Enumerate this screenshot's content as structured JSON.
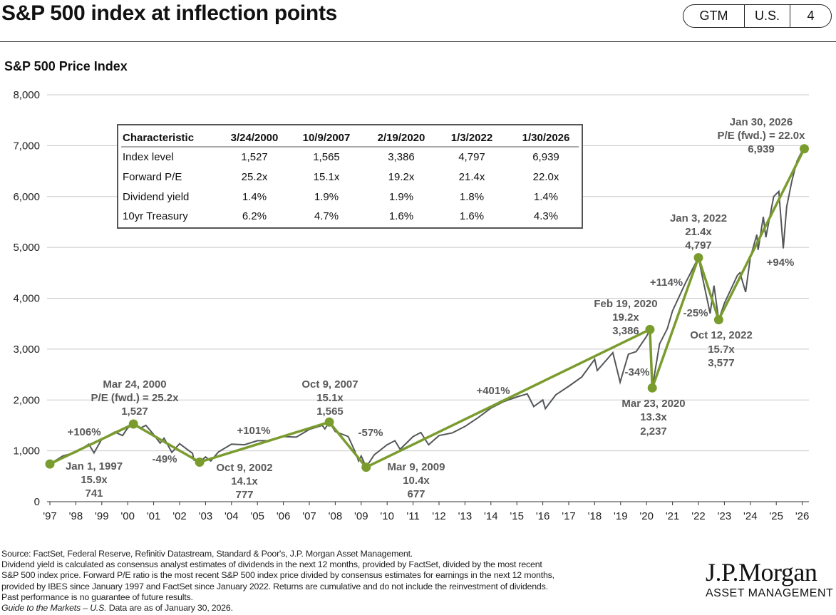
{
  "header": {
    "title": "S&P 500 index at inflection points",
    "badge": [
      "GTM",
      "U.S.",
      "4"
    ]
  },
  "subtitle": "S&P 500 Price Index",
  "table": {
    "headers": [
      "Characteristic",
      "3/24/2000",
      "10/9/2007",
      "2/19/2020",
      "1/3/2022",
      "1/30/2026"
    ],
    "rows": [
      [
        "Index level",
        "1,527",
        "1,565",
        "3,386",
        "4,797",
        "6,939"
      ],
      [
        "Forward P/E",
        "25.2x",
        "15.1x",
        "19.2x",
        "21.4x",
        "22.0x"
      ],
      [
        "Dividend yield",
        "1.4%",
        "1.9%",
        "1.9%",
        "1.8%",
        "1.4%"
      ],
      [
        "10yr Treasury",
        "6.2%",
        "4.7%",
        "1.6%",
        "1.6%",
        "4.3%"
      ]
    ]
  },
  "annotations": {
    "jan1997": [
      "Jan 1, 1997",
      "15.9x",
      "741"
    ],
    "mar2000": [
      "Mar 24, 2000",
      "P/E (fwd.) = 25.2x",
      "1,527"
    ],
    "oct2002": [
      "Oct 9, 2002",
      "14.1x",
      "777"
    ],
    "oct2007": [
      "Oct 9, 2007",
      "15.1x",
      "1,565"
    ],
    "mar2009": [
      "Mar 9, 2009",
      "10.4x",
      "677"
    ],
    "feb2020": [
      "Feb 19, 2020",
      "19.2x",
      "3,386"
    ],
    "mar2020": [
      "Mar 23, 2020",
      "13.3x",
      "2,237"
    ],
    "jan2022": [
      "Jan 3, 2022",
      "21.4x",
      "4,797"
    ],
    "oct2022": [
      "Oct 12, 2022",
      "15.7x",
      "3,577"
    ],
    "jan2026": [
      "Jan 30, 2026",
      "P/E (fwd.) = 22.0x",
      "6,939"
    ],
    "returns": [
      "+106%",
      "-49%",
      "+101%",
      "-57%",
      "+401%",
      "-34%",
      "+114%",
      "-25%",
      "+94%"
    ]
  },
  "chart_data": {
    "type": "line",
    "title": "S&P 500 Price Index",
    "ylim": [
      0,
      8000
    ],
    "yticks": [
      "0",
      "1,000",
      "2,000",
      "3,000",
      "4,000",
      "5,000",
      "6,000",
      "7,000",
      "8,000"
    ],
    "xlim": [
      1997,
      2026
    ],
    "xticks": [
      "'97",
      "'98",
      "'99",
      "'00",
      "'01",
      "'02",
      "'03",
      "'04",
      "'05",
      "'06",
      "'07",
      "'08",
      "'09",
      "'10",
      "'11",
      "'12",
      "'13",
      "'14",
      "'15",
      "'16",
      "'17",
      "'18",
      "'19",
      "'20",
      "'21",
      "'22",
      "'23",
      "'24",
      "'25",
      "'26"
    ],
    "grid": true,
    "colors": {
      "price": "#54575a",
      "inflection": "#7a9c2e"
    },
    "series": [
      {
        "kind": "price",
        "x": [
          1997.0,
          1997.5,
          1998.0,
          1998.5,
          1998.7,
          1999.0,
          1999.5,
          1999.8,
          2000.0,
          2000.22,
          2000.5,
          2000.7,
          2001.0,
          2001.25,
          2001.4,
          2001.7,
          2002.0,
          2002.5,
          2002.55,
          2002.77,
          2003.0,
          2003.2,
          2003.5,
          2004.0,
          2004.5,
          2005.0,
          2005.5,
          2006.0,
          2006.5,
          2007.0,
          2007.5,
          2007.6,
          2007.77,
          2008.0,
          2008.5,
          2008.75,
          2008.9,
          2009.0,
          2009.19,
          2009.5,
          2010.0,
          2010.3,
          2010.5,
          2011.0,
          2011.3,
          2011.6,
          2012.0,
          2012.5,
          2013.0,
          2013.5,
          2014.0,
          2014.5,
          2015.0,
          2015.4,
          2015.65,
          2016.0,
          2016.1,
          2016.5,
          2017.0,
          2017.5,
          2018.0,
          2018.1,
          2018.7,
          2018.98,
          2019.3,
          2019.6,
          2020.0,
          2020.13,
          2020.22,
          2020.5,
          2020.8,
          2021.0,
          2021.5,
          2021.9,
          2022.0,
          2022.2,
          2022.45,
          2022.6,
          2022.78,
          2023.0,
          2023.5,
          2023.6,
          2023.82,
          2024.0,
          2024.25,
          2024.3,
          2024.5,
          2024.6,
          2024.9,
          2025.1,
          2025.27,
          2025.4,
          2025.6,
          2025.8,
          2025.95,
          2026.08
        ],
        "y": [
          741,
          900,
          970,
          1130,
          960,
          1230,
          1370,
          1300,
          1450,
          1527,
          1450,
          1500,
          1320,
          1150,
          1250,
          970,
          1140,
          950,
          820,
          777,
          880,
          800,
          980,
          1130,
          1120,
          1200,
          1200,
          1280,
          1270,
          1420,
          1500,
          1430,
          1565,
          1380,
          1280,
          1000,
          800,
          900,
          677,
          920,
          1120,
          1200,
          1030,
          1280,
          1360,
          1120,
          1300,
          1350,
          1480,
          1650,
          1840,
          1970,
          2060,
          2120,
          1870,
          2000,
          1830,
          2100,
          2270,
          2450,
          2800,
          2580,
          2930,
          2350,
          2900,
          2950,
          3250,
          3386,
          2237,
          3100,
          3400,
          3750,
          4300,
          4700,
          4797,
          4300,
          3700,
          4250,
          3577,
          3900,
          4450,
          4500,
          4120,
          4800,
          5250,
          4950,
          5600,
          5200,
          6000,
          6100,
          4980,
          5800,
          6300,
          6700,
          6850,
          6939
        ]
      },
      {
        "kind": "inflection",
        "x": [
          1997.0,
          2000.22,
          2002.77,
          2007.77,
          2009.19,
          2020.13,
          2020.22,
          2022.0,
          2022.78,
          2026.08
        ],
        "y": [
          741,
          1527,
          777,
          1565,
          677,
          3386,
          2237,
          4797,
          3577,
          6939
        ]
      }
    ]
  },
  "footnotes": {
    "source": "Source: FactSet, Federal Reserve, Refinitiv Datastream, Standard & Poor's, J.P. Morgan Asset Management.",
    "line2": "Dividend yield is calculated as consensus analyst estimates of dividends in the next 12 months, provided by FactSet, divided by the most recent",
    "line3": "S&P 500 index price. Forward P/E ratio is the most recent S&P 500 index price divided by consensus estimates for earnings in the next 12 months,",
    "line4": "provided by IBES since January 1997 and FactSet since January 2022. Returns are cumulative and do not include the reinvestment of dividends.",
    "line5": "Past performance is no guarantee of future results.",
    "guide": "Guide to the Markets – U.S.",
    "asof": " Data are as of January 30, 2026."
  },
  "logo": {
    "name": "J.P.Morgan",
    "sub": "ASSET MANAGEMENT"
  }
}
